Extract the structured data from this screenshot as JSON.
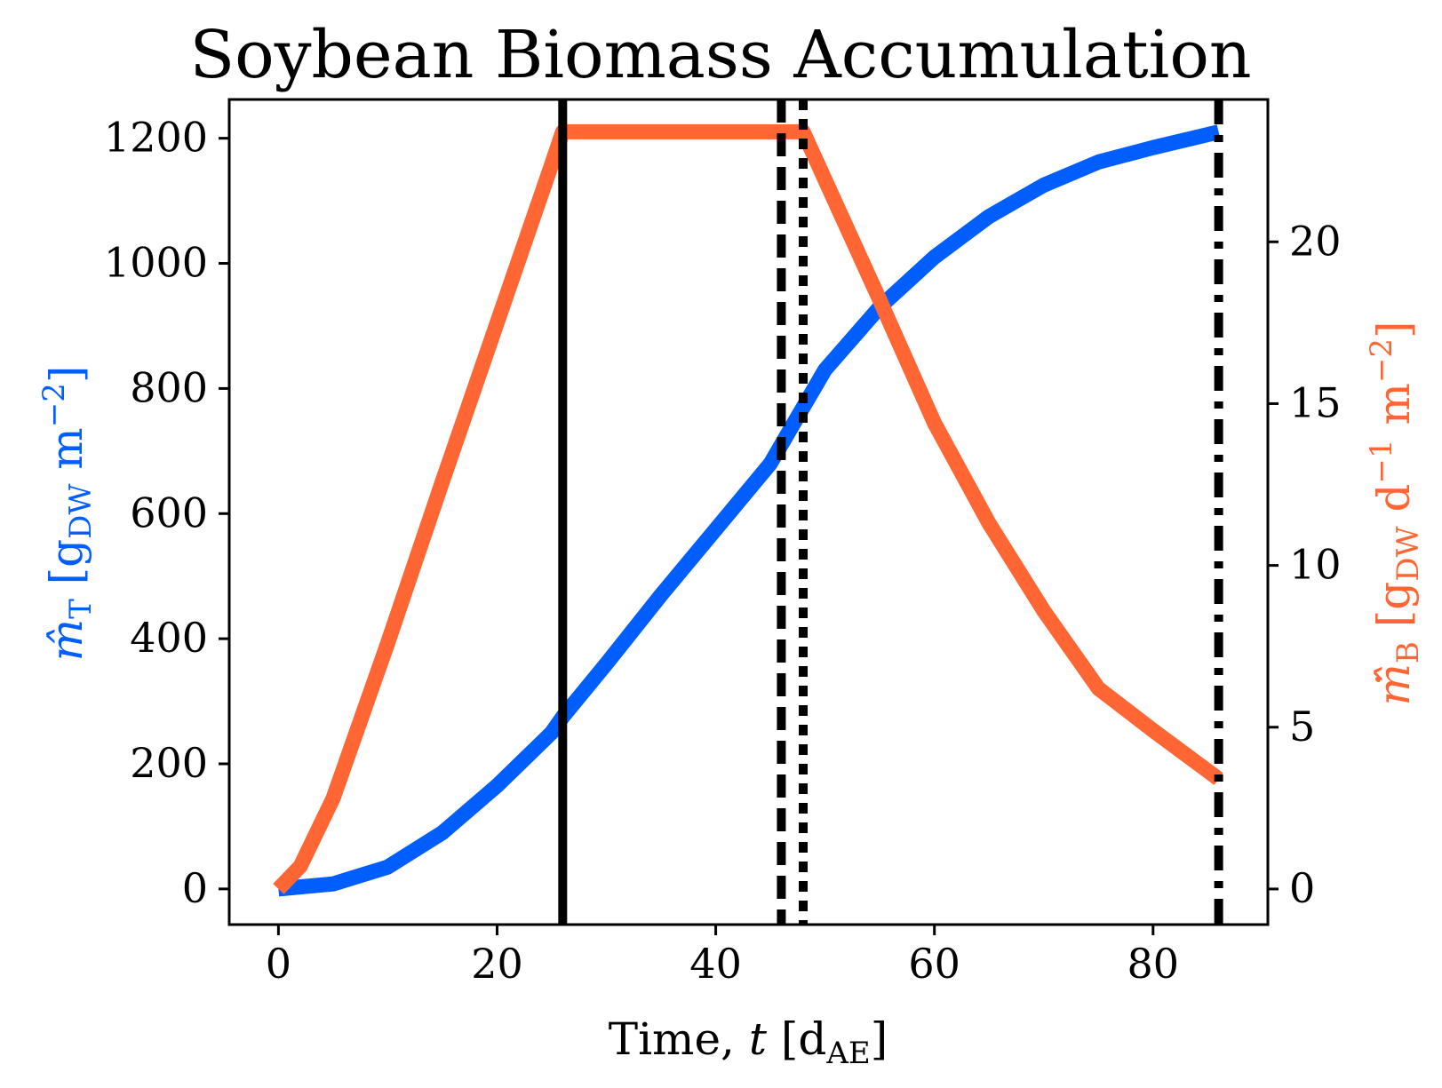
{
  "chart_data": {
    "type": "line",
    "title": "Soybean Biomass Accumulation",
    "xlabel": "Time, t [d_AE]",
    "xlabel_parts": {
      "prefix": "Time, ",
      "var": "t",
      "open": " [d",
      "sub": "AE",
      "close": "]"
    },
    "ylabel_left": "m̂_T [g_DW m^-2]",
    "ylabel_left_parts": {
      "sym": "m̂",
      "sym_sub": "T",
      "open": " [g",
      "unit_sub": "DW",
      "mid": " m",
      "sup": "−2",
      "close": "]"
    },
    "ylabel_right": "ṁ̂_B [g_DW d^-1 m^-2]",
    "ylabel_right_parts": {
      "sym": "ṁ̂",
      "sym_sub": "B",
      "open": " [g",
      "unit_sub": "DW",
      "mid1": " d",
      "sup1": "−1",
      "mid2": " m",
      "sup2": "−2",
      "close": "]"
    },
    "xlim": [
      -4.5,
      90.5
    ],
    "ylim_left": [
      -57,
      1262
    ],
    "ylim_right": [
      -1.1,
      24.4
    ],
    "x_ticks": [
      0,
      20,
      40,
      60,
      80
    ],
    "x_tick_labels": [
      "0",
      "20",
      "40",
      "60",
      "80"
    ],
    "y_left_ticks": [
      0,
      200,
      400,
      600,
      800,
      1000,
      1200
    ],
    "y_left_tick_labels": [
      "0",
      "200",
      "400",
      "600",
      "800",
      "1000",
      "1200"
    ],
    "y_right_ticks": [
      0,
      5,
      10,
      15,
      20
    ],
    "y_right_tick_labels": [
      "0",
      "5",
      "10",
      "15",
      "20"
    ],
    "grid": false,
    "series": [
      {
        "axis": "left",
        "color": "#005EFF",
        "x": [
          0,
          5,
          10,
          15,
          20,
          25,
          26,
          30,
          35,
          40,
          45,
          48,
          50,
          55,
          60,
          65,
          70,
          75,
          80,
          86
        ],
        "y": [
          0,
          8,
          35,
          90,
          165,
          250,
          275,
          360,
          470,
          575,
          680,
          770,
          830,
          930,
          1010,
          1075,
          1125,
          1162,
          1185,
          1210
        ]
      },
      {
        "axis": "right",
        "color": "#FF6633",
        "x": [
          0,
          2,
          5,
          10,
          15,
          20,
          25,
          26,
          35,
          48,
          55,
          60,
          65,
          70,
          75,
          80,
          86
        ],
        "y": [
          0,
          0.7,
          2.8,
          7.6,
          12.6,
          17.5,
          22.4,
          23.4,
          23.4,
          23.4,
          18.2,
          14.4,
          11.3,
          8.6,
          6.2,
          4.9,
          3.4
        ]
      }
    ],
    "vlines": [
      {
        "x": 26,
        "style": "solid"
      },
      {
        "x": 46,
        "style": "dashed"
      },
      {
        "x": 48,
        "style": "dotted"
      },
      {
        "x": 86,
        "style": "dashdot"
      }
    ]
  }
}
